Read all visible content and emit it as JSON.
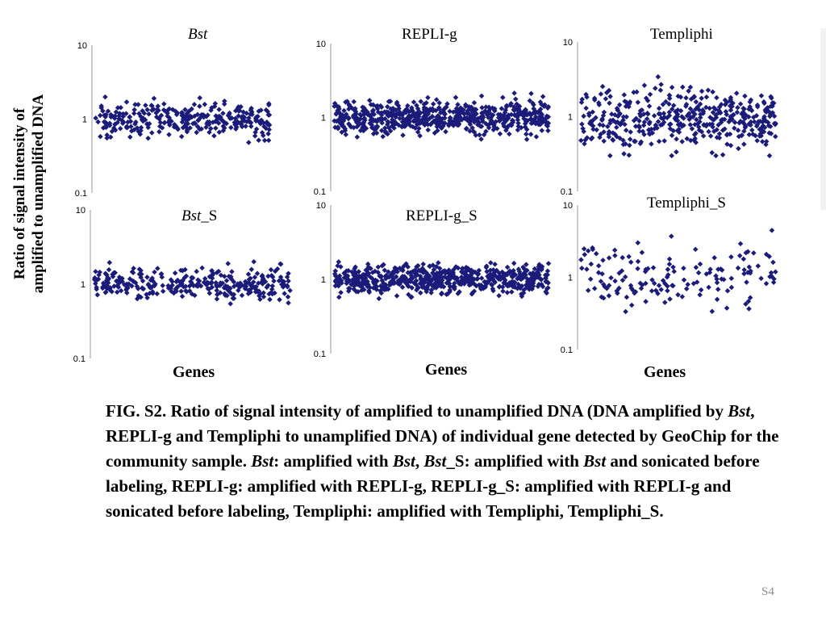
{
  "figure": {
    "y_axis_label_line1": "Ratio of signal intensity of",
    "y_axis_label_line2": "amplified to unamplified DNA",
    "x_axis_labels": [
      "Genes",
      "Genes",
      "Genes"
    ],
    "marker_color": "#1b1b7a"
  },
  "chart_data": [
    {
      "type": "scatter",
      "title": "Bst",
      "title_italic": true,
      "xlabel": "",
      "ylabel": "",
      "yscale": "log",
      "ylim": [
        0.1,
        10
      ],
      "y_ticks": [
        "10",
        "1",
        "0.1"
      ],
      "n_points": 300,
      "y_median": 1.0,
      "y_spread_range": [
        0.45,
        2.2
      ]
    },
    {
      "type": "scatter",
      "title": "REPLI-g",
      "xlabel": "",
      "ylabel": "",
      "yscale": "log",
      "ylim": [
        0.1,
        10
      ],
      "y_ticks": [
        "10",
        "1",
        "0.1"
      ],
      "n_points": 600,
      "y_median": 1.0,
      "y_spread_range": [
        0.5,
        2.2
      ]
    },
    {
      "type": "scatter",
      "title": "Templiphi",
      "xlabel": "",
      "ylabel": "",
      "yscale": "log",
      "ylim": [
        0.1,
        10
      ],
      "y_ticks": [
        "10",
        "1",
        "0.1"
      ],
      "n_points": 420,
      "y_median": 0.95,
      "y_spread_range": [
        0.3,
        4.0
      ]
    },
    {
      "type": "scatter",
      "title_prefix": "Bst",
      "title_suffix": "_S",
      "title_italic_prefix": true,
      "xlabel": "Genes",
      "ylabel": "",
      "yscale": "log",
      "ylim": [
        0.1,
        10
      ],
      "y_ticks": [
        "10",
        "1",
        "0.1"
      ],
      "n_points": 300,
      "y_median": 1.0,
      "y_spread_range": [
        0.45,
        2.2
      ]
    },
    {
      "type": "scatter",
      "title": "REPLI-g_S",
      "xlabel": "Genes",
      "ylabel": "",
      "yscale": "log",
      "ylim": [
        0.1,
        10
      ],
      "y_ticks": [
        "10",
        "1",
        "0.1"
      ],
      "n_points": 600,
      "y_median": 1.0,
      "y_spread_range": [
        0.55,
        2.0
      ]
    },
    {
      "type": "scatter",
      "title": "Templiphi_S",
      "xlabel": "Genes",
      "ylabel": "",
      "yscale": "log",
      "ylim": [
        0.1,
        10
      ],
      "y_ticks": [
        "10",
        "1",
        "0.1"
      ],
      "n_points": 150,
      "y_median": 1.0,
      "y_spread_range": [
        0.2,
        5.0
      ]
    }
  ],
  "caption": {
    "fig_label": "FIG. S2.",
    "t1": " Ratio of signal intensity of amplified to unamplified DNA (DNA amplified by ",
    "i1": "Bst",
    "t2": ", REPLI-g and Templiphi to unamplified DNA) of individual gene detected by GeoChip for the community sample. ",
    "i2": "Bst",
    "t3": ": amplified with ",
    "i3": "Bst",
    "t4": ", ",
    "i4": "Bst",
    "t5": "_S: amplified with ",
    "i5": "Bst",
    "t6": " and sonicated before labeling, REPLI-g: amplified with REPLI-g, REPLI-g_S: amplified with REPLI-g and sonicated before labeling, Templiphi: amplified with Templiphi, Templiphi_S."
  },
  "slide_number": "S4"
}
